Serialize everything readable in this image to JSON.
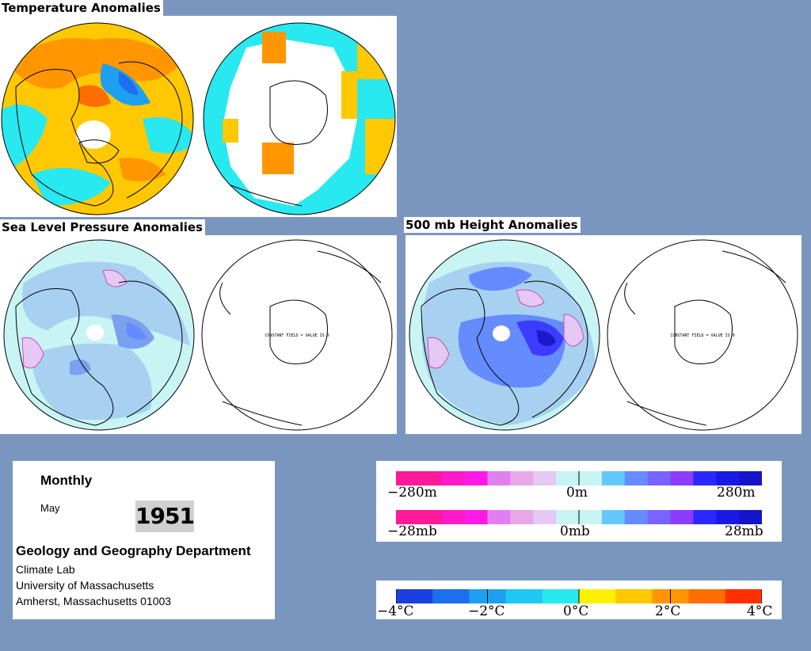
{
  "panels": {
    "temperature": {
      "title": "Temperature Anomalies"
    },
    "slp": {
      "title": "Sea Level Pressure Anomalies",
      "south_label": "CONSTANT FIELD = VALUE IS 0"
    },
    "height500": {
      "title": "500 mb Height Anomalies",
      "south_label": "CONSTANT FIELD = VALUE IS 0"
    }
  },
  "info": {
    "period": "Monthly",
    "month": "May",
    "year": "1951",
    "department": "Geology and Geography Department",
    "lab": "Climate Lab",
    "university": "University of Massachusetts",
    "address": "Amherst, Massachusetts 01003"
  },
  "legend_height": {
    "colors": [
      "#ff199b",
      "#ff199b",
      "#ff19c8",
      "#ff19e8",
      "#e27ff0",
      "#e8a8e8",
      "#e6c8f4",
      "#c8f4f4",
      "#c8f4f4",
      "#64c8ff",
      "#648cff",
      "#7864ff",
      "#8c3cff",
      "#2828ff",
      "#1919e6",
      "#1414c8"
    ],
    "labels": [
      "−280m",
      "0m",
      "280m"
    ]
  },
  "legend_slp": {
    "colors": [
      "#ff199b",
      "#ff199b",
      "#ff19c8",
      "#ff19e8",
      "#e27ff0",
      "#e8a8e8",
      "#e6c8f4",
      "#c8f4f4",
      "#c8f4f4",
      "#64c8ff",
      "#648cff",
      "#7864ff",
      "#8c3cff",
      "#2828ff",
      "#1919e6",
      "#1414c8"
    ],
    "labels": [
      "−28mb",
      "0mb",
      "28mb"
    ]
  },
  "legend_temp": {
    "colors": [
      "#1a40e0",
      "#1e6ef0",
      "#1ea0f0",
      "#1ec8f0",
      "#28e8f0",
      "#fff000",
      "#ffc800",
      "#ff9600",
      "#ff6e00",
      "#ff3000"
    ],
    "labels": [
      "−4°C",
      "−2°C",
      "0°C",
      "2°C",
      "4°C"
    ]
  }
}
